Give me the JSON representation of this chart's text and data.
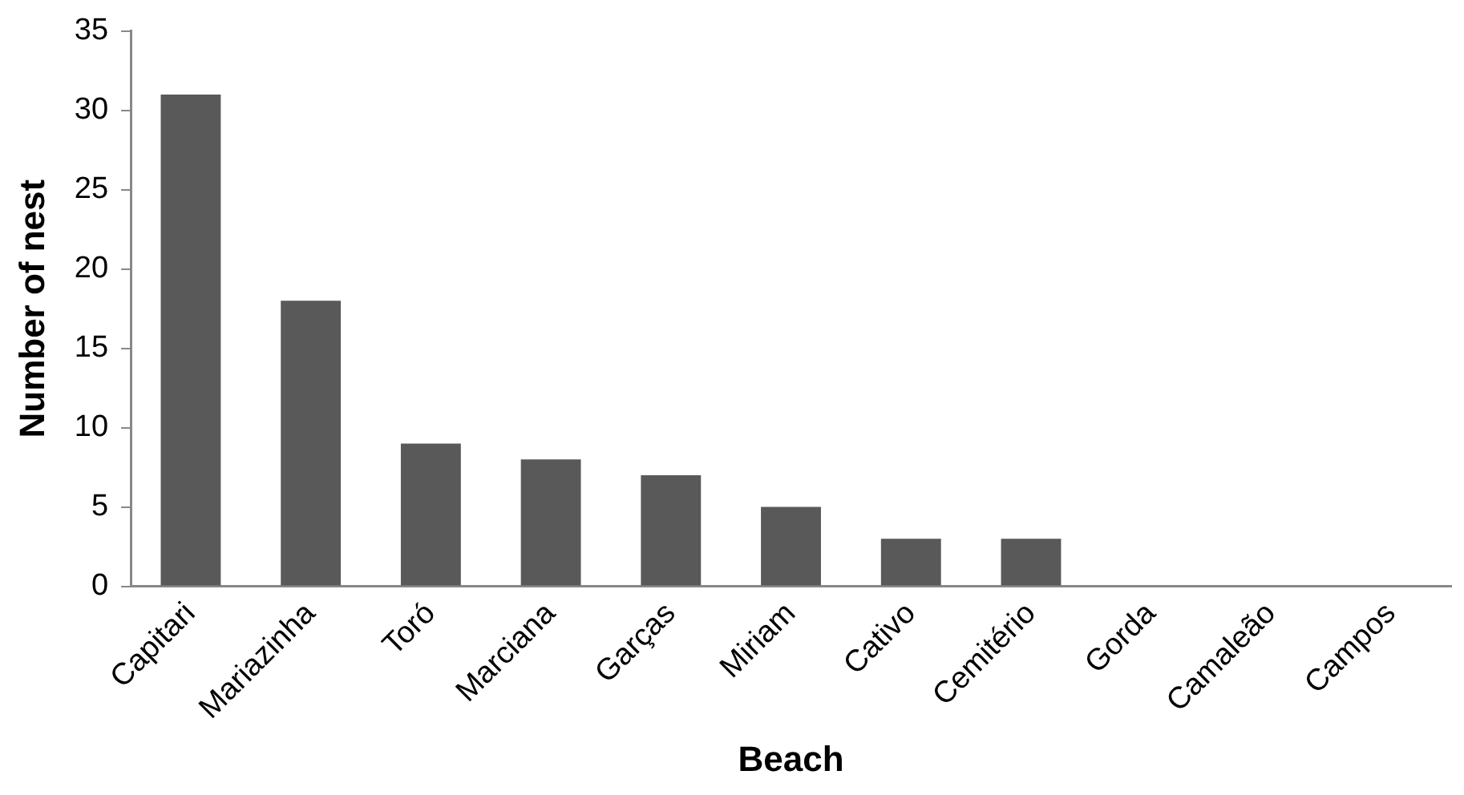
{
  "chart_data": {
    "type": "bar",
    "xlabel": "Beach",
    "ylabel": "Number of nest",
    "categories": [
      "Capitari",
      "Mariazinha",
      "Toró",
      "Marciana",
      "Garças",
      "Miriam",
      "Cativo",
      "Cemitério",
      "Gorda",
      "Camaleão",
      "Campos"
    ],
    "values": [
      31,
      18,
      9,
      8,
      7,
      5,
      3,
      3,
      0,
      0,
      0
    ],
    "color": "#595959",
    "ylim": [
      0,
      35
    ],
    "yticks": [
      0,
      5,
      10,
      15,
      20,
      25,
      30,
      35
    ],
    "legend": false
  }
}
